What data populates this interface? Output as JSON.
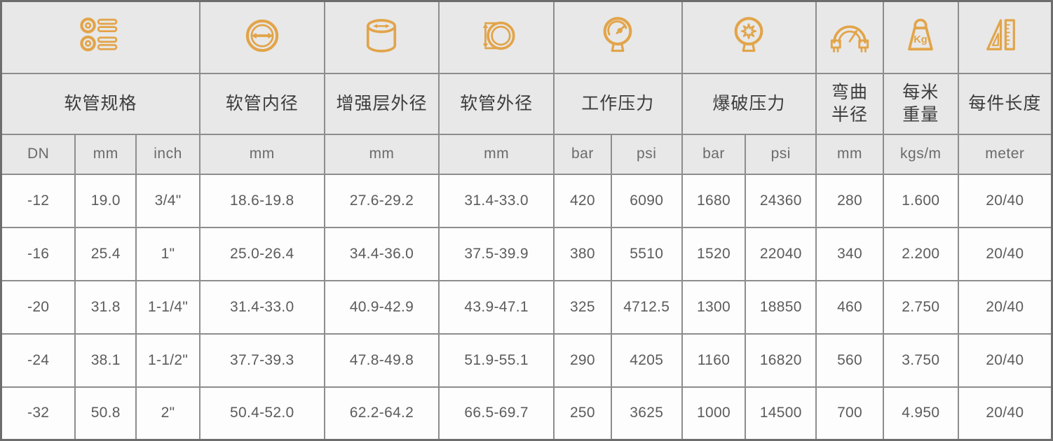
{
  "table": {
    "groups": [
      {
        "label": "软管规格",
        "icon": "spec-list-icon",
        "span": 3
      },
      {
        "label": "软管内径",
        "icon": "inner-diameter-icon",
        "span": 1
      },
      {
        "label": "增强层外径",
        "icon": "reinforcement-od-icon",
        "span": 1
      },
      {
        "label": "软管外径",
        "icon": "outer-diameter-icon",
        "span": 1
      },
      {
        "label": "工作压力",
        "icon": "working-pressure-gauge-icon",
        "span": 2
      },
      {
        "label": "爆破压力",
        "icon": "burst-pressure-gauge-icon",
        "span": 2
      },
      {
        "label": "弯曲\n半径",
        "icon": "bend-radius-icon",
        "span": 1
      },
      {
        "label": "每米\n重量",
        "icon": "kg-weight-icon",
        "span": 1
      },
      {
        "label": "每件长度",
        "icon": "ruler-length-icon",
        "span": 1
      }
    ],
    "units": [
      "DN",
      "mm",
      "inch",
      "mm",
      "mm",
      "mm",
      "bar",
      "psi",
      "bar",
      "psi",
      "mm",
      "kgs/m",
      "meter"
    ],
    "rows": [
      [
        "-12",
        "19.0",
        "3/4\"",
        "18.6-19.8",
        "27.6-29.2",
        "31.4-33.0",
        "420",
        "6090",
        "1680",
        "24360",
        "280",
        "1.600",
        "20/40"
      ],
      [
        "-16",
        "25.4",
        "1\"",
        "25.0-26.4",
        "34.4-36.0",
        "37.5-39.9",
        "380",
        "5510",
        "1520",
        "22040",
        "340",
        "2.200",
        "20/40"
      ],
      [
        "-20",
        "31.8",
        "1-1/4\"",
        "31.4-33.0",
        "40.9-42.9",
        "43.9-47.1",
        "325",
        "4712.5",
        "1300",
        "18850",
        "460",
        "2.750",
        "20/40"
      ],
      [
        "-24",
        "38.1",
        "1-1/2\"",
        "37.7-39.3",
        "47.8-49.8",
        "51.9-55.1",
        "290",
        "4205",
        "1160",
        "16820",
        "560",
        "3.750",
        "20/40"
      ],
      [
        "-32",
        "50.8",
        "2\"",
        "50.4-52.0",
        "62.2-64.2",
        "66.5-69.7",
        "250",
        "3625",
        "1000",
        "14500",
        "700",
        "4.950",
        "20/40"
      ]
    ],
    "colors": {
      "accent": "#E2A449",
      "header_bg": "#E8E8E8",
      "row_bg": "#FDFDFD",
      "border": "#8D8D8D",
      "outer_border": "#6D6D6D",
      "header_text": "#3C3C3C",
      "unit_text": "#6B6B6B",
      "data_text": "#5C5C5C"
    }
  }
}
